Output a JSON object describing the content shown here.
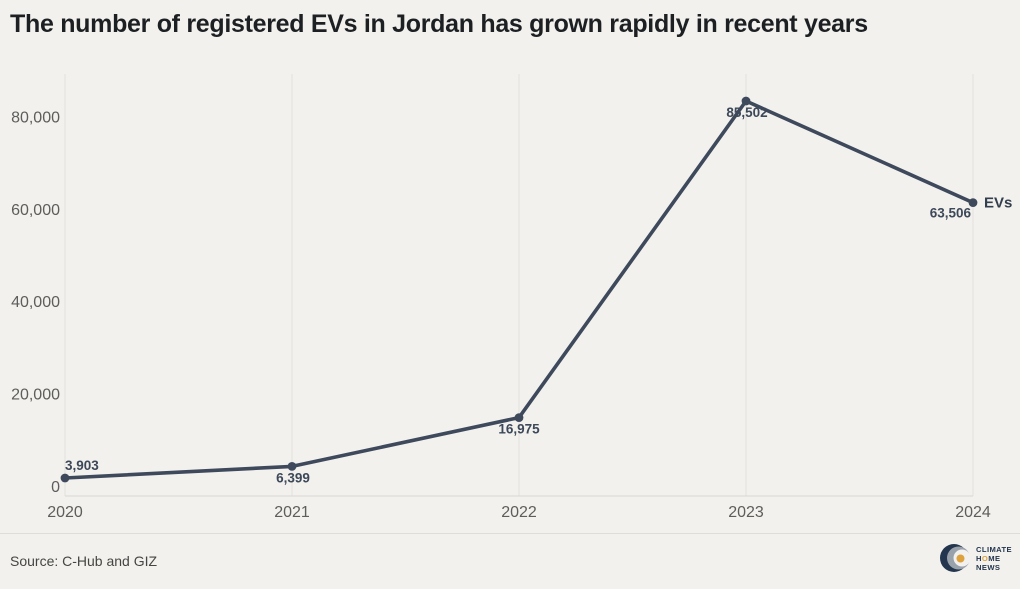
{
  "title": "The number of registered EVs in Jordan has grown rapidly in recent years",
  "source": "Source: C-Hub and GIZ",
  "logo": {
    "line1": "CLIMATE",
    "line2_pre": "H",
    "line2_o": "O",
    "line2_post": "ME",
    "line3": "NEWS"
  },
  "colors": {
    "background": "#f2f1ee",
    "title": "#1d2023",
    "line": "#3e4a5c",
    "point": "#3e4a5c",
    "data_label": "#3d4859",
    "series_label": "#333f4e",
    "grid": "#e2e1df",
    "axis_line": "#d8d7d4",
    "tick_label": "#5d5d5b",
    "source_text": "#454543",
    "logo_navy": "#24364e",
    "logo_gray": "#99a1ab",
    "logo_orange": "#dda23e"
  },
  "chart_data": {
    "type": "line",
    "title": "The number of registered EVs in Jordan has grown rapidly in recent years",
    "x": [
      2020,
      2021,
      2022,
      2023,
      2024
    ],
    "x_labels": [
      "2020",
      "2021",
      "2022",
      "2023",
      "2024"
    ],
    "series": [
      {
        "name": "EVs",
        "values": [
          3903,
          6399,
          16975,
          85502,
          63506
        ]
      }
    ],
    "point_labels": [
      "3,903",
      "6,399",
      "16,975",
      "85,502",
      "63,506"
    ],
    "series_label": "EVs",
    "yticks": [
      0,
      20000,
      40000,
      60000,
      80000
    ],
    "ytick_labels": [
      "0",
      "20,000",
      "40,000",
      "60,000",
      "80,000"
    ],
    "ylim": [
      0,
      91300
    ],
    "grid": "vertical-only",
    "legend_position": "end-of-line",
    "xlabel": "",
    "ylabel": ""
  }
}
